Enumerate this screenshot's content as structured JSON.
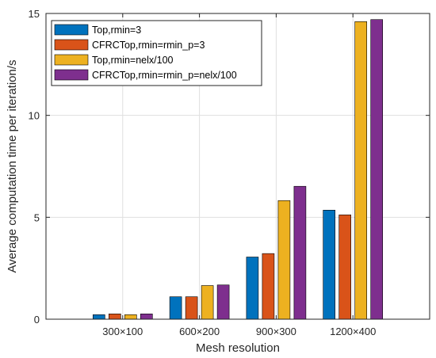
{
  "chart_data": {
    "type": "bar",
    "title": "",
    "xlabel": "Mesh resolution",
    "ylabel": "Average computation time per iteration/s",
    "categories": [
      "300×100",
      "600×200",
      "900×300",
      "1200×400"
    ],
    "ylim": [
      0,
      15
    ],
    "yticks": [
      0,
      5,
      10,
      15
    ],
    "grid": true,
    "legend_position": "top-left",
    "series": [
      {
        "name": "Top,rmin=3",
        "color": "#0072BD",
        "values": [
          0.22,
          1.1,
          3.05,
          5.35
        ]
      },
      {
        "name": "CFRCTop,rmin=rmin_p=3",
        "color": "#D95319",
        "values": [
          0.26,
          1.1,
          3.22,
          5.12
        ]
      },
      {
        "name": "Top,rmin=nelx/100",
        "color": "#EDB120",
        "values": [
          0.22,
          1.65,
          5.82,
          14.6
        ]
      },
      {
        "name": "CFRCTop,rmin=rmin_p=nelx/100",
        "color": "#7E2F8E",
        "values": [
          0.26,
          1.68,
          6.52,
          14.7
        ]
      }
    ]
  }
}
